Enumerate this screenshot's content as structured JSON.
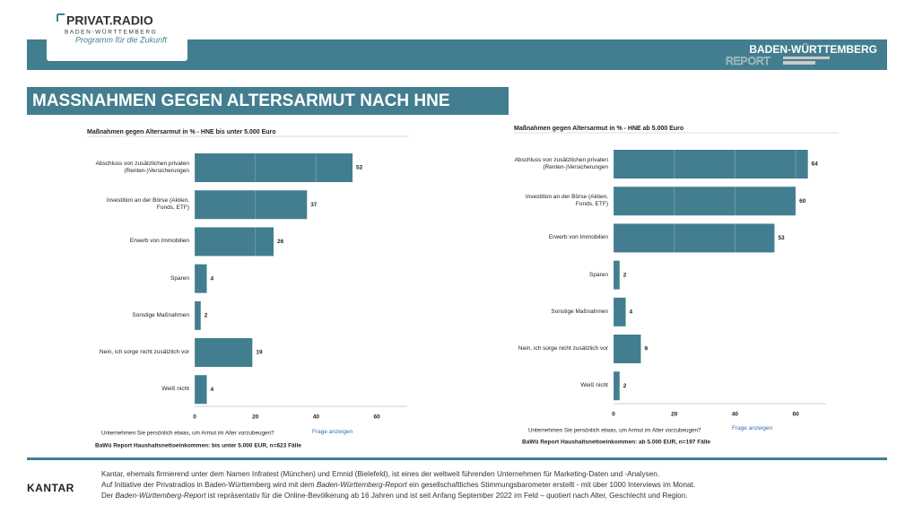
{
  "header": {
    "logo_title": "PRIVAT.RADIO",
    "logo_region": "BADEN-WÜRTTEMBERG",
    "logo_slogan": "Programm für die Zukunft",
    "report_region": "BADEN-WÜRTTEMBERG",
    "report_word": "REPORT"
  },
  "slide_title": "MASSNAHMEN GEGEN ALTERSARMUT NACH HNE",
  "chart_data": [
    {
      "type": "bar",
      "orientation": "horizontal",
      "title": "Maßnahmen gegen Altersarmut in % - HNE bis unter 5.000 Euro",
      "categories": [
        "Abschluss von zusätzlichen privaten\n(Renten-)Versicherungen",
        "Investition an der Börse (Aktien,\nFonds, ETF)",
        "Erwerb von Immobilien",
        "Sparen",
        "Sonstige Maßnahmen",
        "Nein, ich sorge nicht zusätzlich vor",
        "Weiß nicht"
      ],
      "values": [
        52,
        37,
        26,
        4,
        2,
        19,
        4
      ],
      "color": "#427e8f",
      "xlim": [
        0,
        70
      ],
      "xticks": [
        0,
        20,
        40,
        60
      ],
      "grid": true,
      "question": "Unternehmen Sie persönlich etwas, um Armut im Alter vorzubeugen?",
      "link": "Frage anzeigen",
      "source": "BaWü Report Haushaltsnettoeinkommen: bis unter 5.000 EUR, n=623 Fälle"
    },
    {
      "type": "bar",
      "orientation": "horizontal",
      "title": "Maßnahmen gegen Altersarmut in % - HNE ab 5.000 Euro",
      "categories": [
        "Abschluss von zusätzlichen privaten\n(Renten-)Versicherungen",
        "Investition an der Börse (Aktien,\nFonds, ETF)",
        "Erwerb von Immobilien",
        "Sparen",
        "Sonstige Maßnahmen",
        "Nein, ich sorge nicht zusätzlich vor",
        "Weiß nicht"
      ],
      "values": [
        64,
        60,
        53,
        2,
        4,
        9,
        2
      ],
      "color": "#427e8f",
      "xlim": [
        0,
        70
      ],
      "xticks": [
        0,
        20,
        40,
        60
      ],
      "grid": true,
      "question": "Unternehmen Sie persönlich etwas, um Armut im Alter vorzubeugen?",
      "link": "Frage anzeigen",
      "source": "BaWü Report Haushaltsnettoeinkommen: ab 5.000 EUR, n=197 Fälle"
    }
  ],
  "footer": {
    "brand": "KANTAR",
    "lines": [
      [
        "Kantar, ehemals firmierend unter dem Namen Infratest (München) und Emnid  (Bielefeld), ist eines der weltweit führenden Unternehmen für Marketing-Daten und -Analysen."
      ],
      [
        "Auf Initiative der Privatradios in Baden-Württemberg wird mit dem ",
        "Baden-Württemberg-Report",
        " ein gesellschaftliches Stimmungsbarometer erstellt - mit über 1000 Interviews im Monat."
      ],
      [
        "Der ",
        "Baden-Württemberg-Report",
        " ist repräsentativ für die Online-Bevölkerung ab 16 Jahren und ist seit Anfang September 2022 im Feld – quotiert nach Alter, Geschlecht und Region."
      ]
    ]
  }
}
